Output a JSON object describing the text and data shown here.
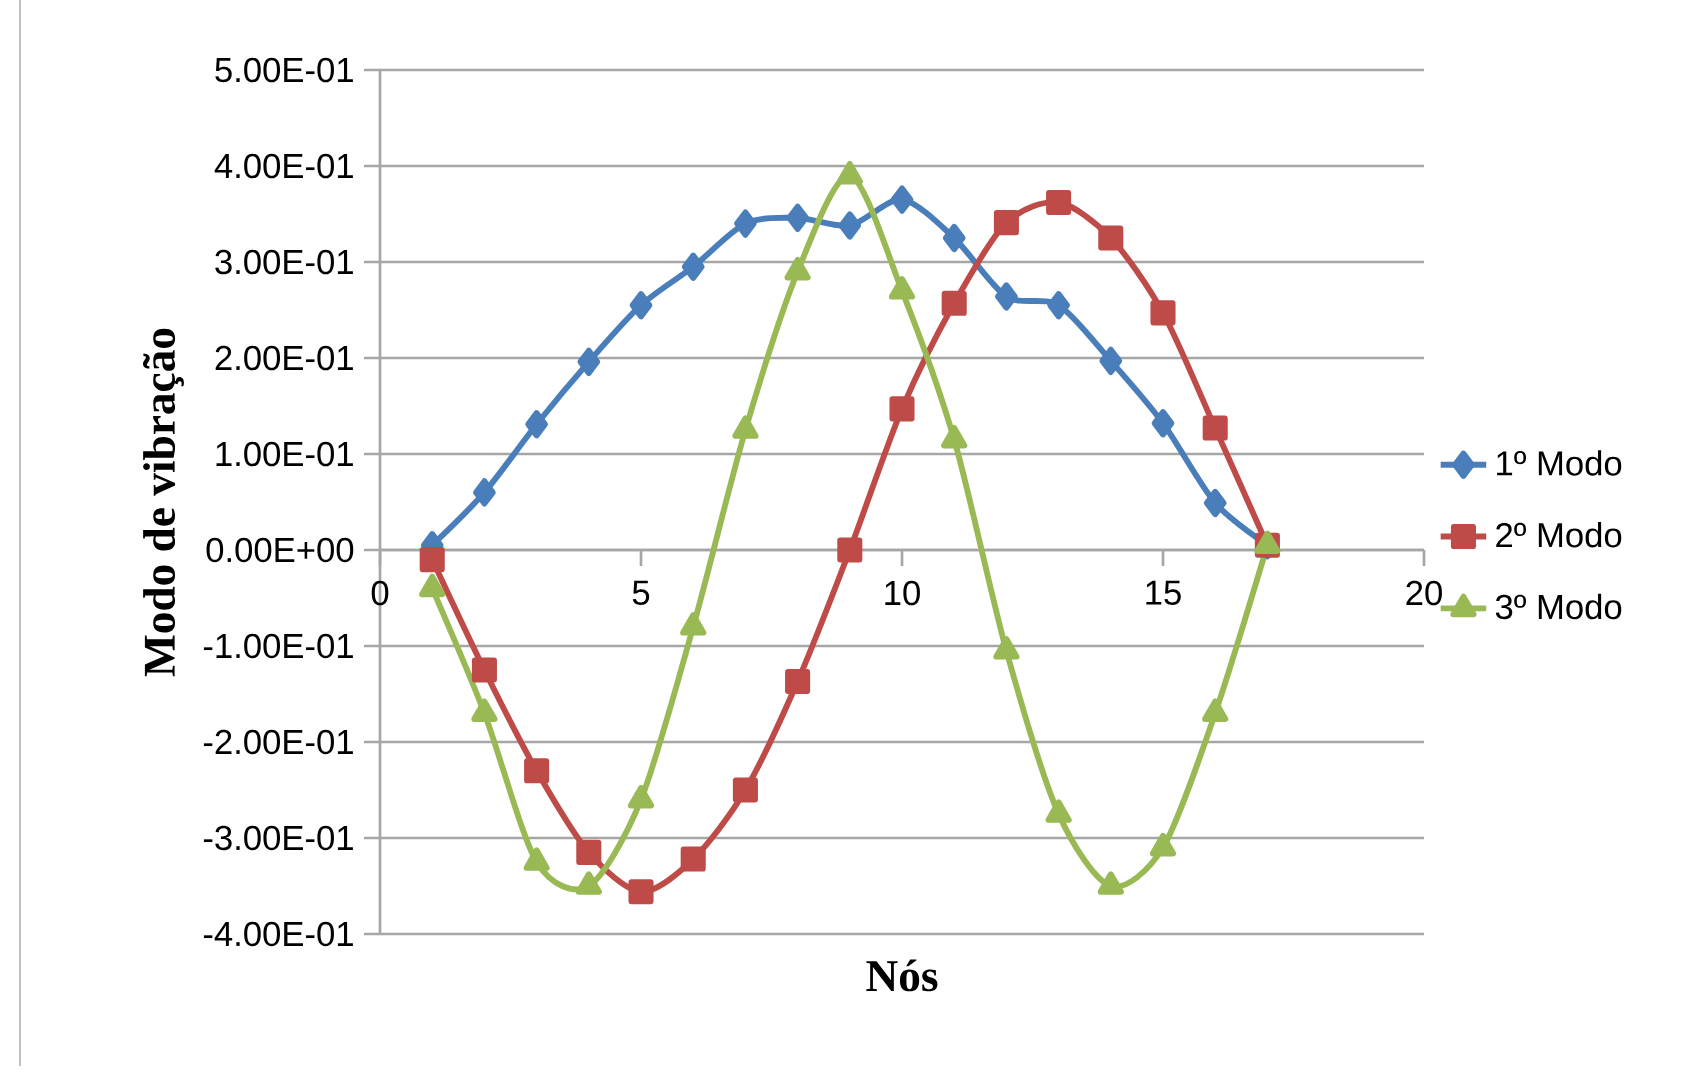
{
  "chart_data": {
    "type": "line",
    "xlabel": "Nós",
    "ylabel": "Modo de vibração",
    "x": [
      1,
      2,
      3,
      4,
      5,
      6,
      7,
      8,
      9,
      10,
      11,
      12,
      13,
      14,
      15,
      16,
      17
    ],
    "series": [
      {
        "name": "1º Modo",
        "color": "#4a7ebb",
        "marker": "diamond",
        "values": [
          0.005,
          0.06,
          0.131,
          0.196,
          0.255,
          0.295,
          0.34,
          0.346,
          0.338,
          0.365,
          0.325,
          0.264,
          0.255,
          0.197,
          0.132,
          0.049,
          0.005
        ]
      },
      {
        "name": "2º Modo",
        "color": "#be4b48",
        "marker": "square",
        "values": [
          -0.01,
          -0.125,
          -0.23,
          -0.315,
          -0.356,
          -0.322,
          -0.25,
          -0.137,
          0.0,
          0.147,
          0.257,
          0.341,
          0.362,
          0.325,
          0.247,
          0.127,
          0.005
        ]
      },
      {
        "name": "3º Modo",
        "color": "#98b954",
        "marker": "triangle",
        "values": [
          -0.04,
          -0.17,
          -0.325,
          -0.35,
          -0.26,
          -0.08,
          0.125,
          0.29,
          0.39,
          0.27,
          0.115,
          -0.105,
          -0.275,
          -0.35,
          -0.31,
          -0.17,
          0.005
        ]
      }
    ],
    "xlim": [
      0,
      20
    ],
    "xticks": [
      0,
      5,
      10,
      15,
      20
    ],
    "ylim": [
      -0.4,
      0.5
    ],
    "yticks": [
      {
        "value": -0.4,
        "label": "-4.00E-01"
      },
      {
        "value": -0.3,
        "label": "-3.00E-01"
      },
      {
        "value": -0.2,
        "label": "-2.00E-01"
      },
      {
        "value": -0.1,
        "label": "-1.00E-01"
      },
      {
        "value": 0,
        "label": "0.00E+00"
      },
      {
        "value": 0.1,
        "label": "1.00E-01"
      },
      {
        "value": 0.2,
        "label": "2.00E-01"
      },
      {
        "value": 0.3,
        "label": "3.00E-01"
      },
      {
        "value": 0.4,
        "label": "4.00E-01"
      },
      {
        "value": 0.5,
        "label": "5.00E-01"
      }
    ],
    "grid": "y",
    "legend": "right",
    "line_style": "solid"
  }
}
